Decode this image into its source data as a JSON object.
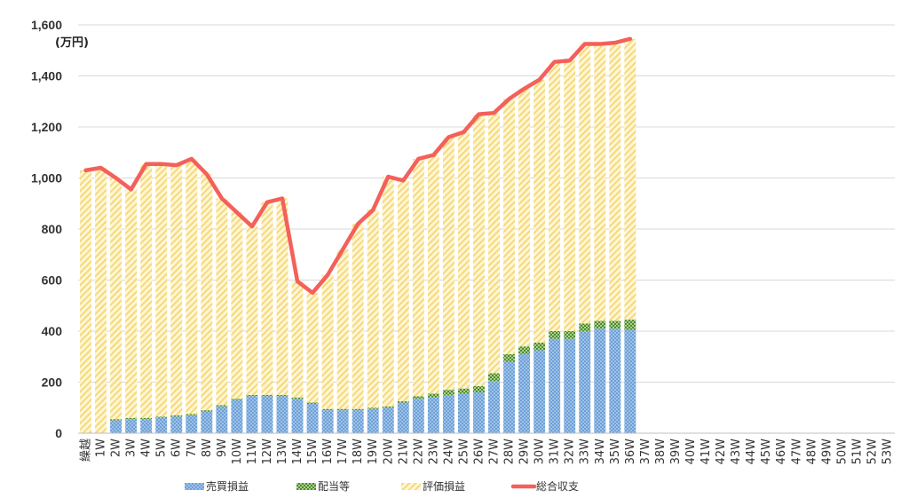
{
  "chart_data": {
    "type": "bar",
    "stacked": true,
    "unit_label": "(万円)",
    "title": "",
    "xlabel": "",
    "ylabel": "",
    "ylim": [
      0,
      1600
    ],
    "yticks": [
      0,
      200,
      400,
      600,
      800,
      1000,
      1200,
      1400,
      1600
    ],
    "ytick_labels": [
      "0",
      "200",
      "400",
      "600",
      "800",
      "1,000",
      "1,200",
      "1,400",
      "1,600"
    ],
    "grid": true,
    "legend_position": "bottom",
    "categories": [
      "繰越",
      "1W",
      "2W",
      "3W",
      "4W",
      "5W",
      "6W",
      "7W",
      "8W",
      "9W",
      "10W",
      "11W",
      "12W",
      "13W",
      "14W",
      "15W",
      "16W",
      "17W",
      "18W",
      "19W",
      "20W",
      "21W",
      "22W",
      "23W",
      "24W",
      "25W",
      "26W",
      "27W",
      "28W",
      "29W",
      "30W",
      "31W",
      "32W",
      "33W",
      "34W",
      "35W",
      "36W",
      "37W",
      "38W",
      "39W",
      "40W",
      "41W",
      "42W",
      "43W",
      "44W",
      "45W",
      "46W",
      "47W",
      "48W",
      "49W",
      "50W",
      "51W",
      "52W",
      "53W"
    ],
    "series": [
      {
        "name": "売買損益",
        "kind": "bar",
        "color": "#8EB4E3",
        "values": [
          0,
          0,
          50,
          55,
          55,
          60,
          65,
          70,
          85,
          105,
          130,
          145,
          145,
          145,
          135,
          115,
          90,
          90,
          90,
          95,
          100,
          120,
          135,
          140,
          150,
          155,
          160,
          205,
          280,
          310,
          325,
          370,
          370,
          400,
          410,
          410,
          405,
          null,
          null,
          null,
          null,
          null,
          null,
          null,
          null,
          null,
          null,
          null,
          null,
          null,
          null,
          null,
          null,
          null
        ]
      },
      {
        "name": "配当等",
        "kind": "bar",
        "color": "#70AD47",
        "values": [
          0,
          0,
          5,
          5,
          5,
          5,
          5,
          5,
          5,
          5,
          5,
          5,
          5,
          5,
          5,
          5,
          5,
          5,
          5,
          5,
          5,
          5,
          10,
          15,
          20,
          20,
          25,
          30,
          30,
          30,
          30,
          30,
          30,
          30,
          30,
          30,
          40,
          null,
          null,
          null,
          null,
          null,
          null,
          null,
          null,
          null,
          null,
          null,
          null,
          null,
          null,
          null,
          null,
          null
        ]
      },
      {
        "name": "評価損益",
        "kind": "bar",
        "color": "#FFE699",
        "values": [
          1030,
          1040,
          945,
          895,
          995,
          990,
          980,
          1000,
          925,
          810,
          730,
          660,
          755,
          770,
          455,
          430,
          525,
          625,
          725,
          775,
          900,
          865,
          930,
          935,
          990,
          1005,
          1065,
          1020,
          1000,
          1010,
          1030,
          1055,
          1060,
          1095,
          1085,
          1090,
          1100,
          null,
          null,
          null,
          null,
          null,
          null,
          null,
          null,
          null,
          null,
          null,
          null,
          null,
          null,
          null,
          null,
          null
        ]
      },
      {
        "name": "総合収支",
        "kind": "line",
        "color": "#F4605A",
        "values": [
          1030,
          1040,
          1000,
          955,
          1055,
          1055,
          1050,
          1075,
          1015,
          920,
          865,
          810,
          905,
          920,
          595,
          550,
          620,
          720,
          820,
          875,
          1005,
          990,
          1075,
          1090,
          1160,
          1180,
          1250,
          1255,
          1310,
          1350,
          1385,
          1455,
          1460,
          1525,
          1525,
          1530,
          1545,
          null,
          null,
          null,
          null,
          null,
          null,
          null,
          null,
          null,
          null,
          null,
          null,
          null,
          null,
          null,
          null,
          null
        ]
      }
    ]
  }
}
